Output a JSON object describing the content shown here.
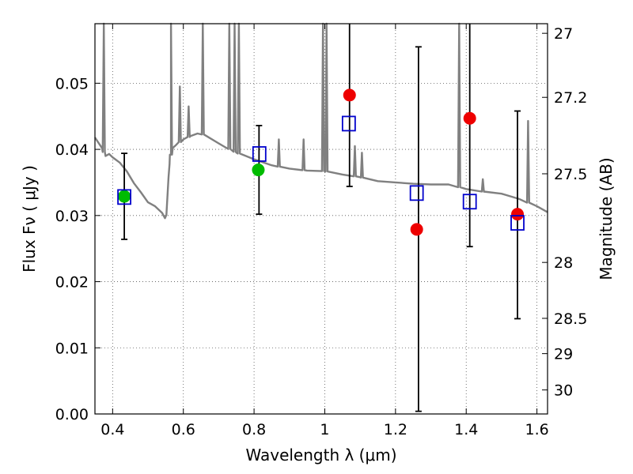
{
  "chart_data": {
    "type": "scatter",
    "xlabel": "Wavelength  λ (μm)",
    "ylabel": "Flux  Fν  ( μJy )",
    "y2label": "Magnitude (AB)",
    "xlim": [
      0.35,
      1.63
    ],
    "ylim": [
      0.0,
      0.059
    ],
    "grid": true,
    "x_ticks": [
      "0.4",
      "0.6",
      "0.8",
      "1",
      "1.2",
      "1.4",
      "1.6"
    ],
    "x_tick_values": [
      0.4,
      0.6,
      0.8,
      1.0,
      1.2,
      1.4,
      1.6
    ],
    "y_ticks": [
      "0.00",
      "0.01",
      "0.02",
      "0.03",
      "0.04",
      "0.05"
    ],
    "y_tick_values": [
      0.0,
      0.01,
      0.02,
      0.03,
      0.04,
      0.05
    ],
    "y2_ticks": [
      "27",
      "27.2",
      "27.5",
      "28",
      "28.5",
      "29",
      "30"
    ],
    "y2_tick_values": [
      27,
      27.2,
      27.5,
      28,
      28.5,
      29,
      30
    ],
    "colors": {
      "model": "#808080",
      "observed_detected": "#00bb00",
      "observed_other": "#ee0000",
      "model_photometry": "#0000cc",
      "errorbar": "#000000",
      "grid": "#555555"
    },
    "series": [
      {
        "kind": "model-spectrum",
        "x": [
          0.35,
          0.37,
          0.38,
          0.39,
          0.4,
          0.42,
          0.44,
          0.46,
          0.48,
          0.5,
          0.52,
          0.54,
          0.548,
          0.552,
          0.558,
          0.561,
          0.565,
          0.57,
          0.58,
          0.6,
          0.62,
          0.64,
          0.66,
          0.7,
          0.75,
          0.8,
          0.85,
          0.9,
          0.95,
          1.0,
          1.05,
          1.1,
          1.15,
          1.2,
          1.25,
          1.3,
          1.35,
          1.4,
          1.45,
          1.5,
          1.55,
          1.6,
          1.63
        ],
        "y": [
          0.0418,
          0.0402,
          0.039,
          0.0393,
          0.0388,
          0.038,
          0.0367,
          0.0349,
          0.0335,
          0.032,
          0.0314,
          0.0304,
          0.0296,
          0.0301,
          0.0358,
          0.0378,
          0.0392,
          0.0402,
          0.0407,
          0.0415,
          0.042,
          0.0424,
          0.0422,
          0.0409,
          0.0395,
          0.0385,
          0.0376,
          0.0371,
          0.0368,
          0.0367,
          0.0362,
          0.0358,
          0.0352,
          0.035,
          0.0348,
          0.0347,
          0.0347,
          0.034,
          0.0336,
          0.0333,
          0.0325,
          0.0314,
          0.0305
        ],
        "spikes": [
          {
            "x": 0.375,
            "y": 0.059
          },
          {
            "x": 0.565,
            "y": 0.059
          },
          {
            "x": 0.59,
            "y": 0.0495
          },
          {
            "x": 0.615,
            "y": 0.0465
          },
          {
            "x": 0.655,
            "y": 0.059
          },
          {
            "x": 0.73,
            "y": 0.059
          },
          {
            "x": 0.745,
            "y": 0.059
          },
          {
            "x": 0.757,
            "y": 0.059
          },
          {
            "x": 0.87,
            "y": 0.0415
          },
          {
            "x": 0.94,
            "y": 0.0415
          },
          {
            "x": 0.995,
            "y": 0.059
          },
          {
            "x": 1.005,
            "y": 0.059
          },
          {
            "x": 1.085,
            "y": 0.0405
          },
          {
            "x": 1.105,
            "y": 0.0395
          },
          {
            "x": 1.38,
            "y": 0.059
          },
          {
            "x": 1.447,
            "y": 0.0355
          },
          {
            "x": 1.575,
            "y": 0.0443
          }
        ]
      },
      {
        "kind": "observed-errorbars",
        "points": [
          {
            "x": 0.433,
            "low": 0.0264,
            "high": 0.0394
          },
          {
            "x": 0.814,
            "low": 0.0302,
            "high": 0.0436
          },
          {
            "x": 1.07,
            "low": 0.0344,
            "high": 0.059
          },
          {
            "x": 1.265,
            "low": 0.0004,
            "high": 0.0555
          },
          {
            "x": 1.41,
            "low": 0.0253,
            "high": 0.059
          },
          {
            "x": 1.545,
            "low": 0.0144,
            "high": 0.0458
          }
        ]
      },
      {
        "kind": "observed-points",
        "points": [
          {
            "x": 0.433,
            "y": 0.0329,
            "color": "#00bb00"
          },
          {
            "x": 0.812,
            "y": 0.0369,
            "color": "#00bb00"
          },
          {
            "x": 1.07,
            "y": 0.0482,
            "color": "#ee0000"
          },
          {
            "x": 1.26,
            "y": 0.0279,
            "color": "#ee0000"
          },
          {
            "x": 1.41,
            "y": 0.0447,
            "color": "#ee0000"
          },
          {
            "x": 1.545,
            "y": 0.0302,
            "color": "#ee0000"
          }
        ]
      },
      {
        "kind": "model-photometry",
        "points": [
          {
            "x": 0.433,
            "y": 0.0328
          },
          {
            "x": 0.815,
            "y": 0.0393
          },
          {
            "x": 1.068,
            "y": 0.0439
          },
          {
            "x": 1.26,
            "y": 0.0334
          },
          {
            "x": 1.41,
            "y": 0.0321
          },
          {
            "x": 1.545,
            "y": 0.0289
          }
        ]
      }
    ]
  }
}
